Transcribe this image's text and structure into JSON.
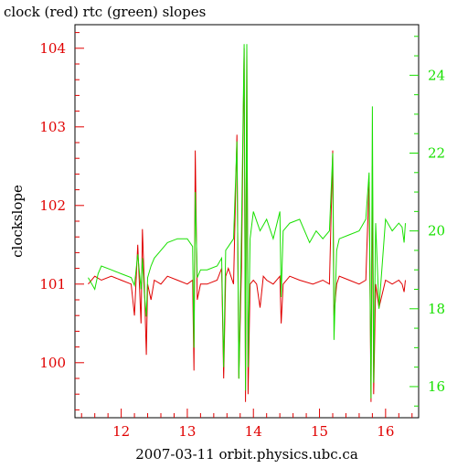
{
  "chart_data": {
    "type": "line",
    "title": "clock (red) rtc (green) slopes",
    "xlabel": "2007-03-11 orbit.physics.ubc.ca",
    "ylabel_left": "clockslope",
    "ylabel_right": "",
    "x_range": [
      11.3,
      16.5
    ],
    "y_left_range": [
      99.3,
      104.3
    ],
    "y_right_range": [
      15.2,
      25.3
    ],
    "x_ticks": [
      12,
      13,
      14,
      15,
      16
    ],
    "y_left_ticks": [
      100,
      101,
      102,
      103,
      104
    ],
    "y_right_ticks": [
      16,
      18,
      20,
      22,
      24
    ],
    "grid": false,
    "colors": {
      "clock": "#e00000",
      "rtc": "#18e000",
      "axis": "#000000"
    },
    "series": [
      {
        "name": "clock",
        "axis": "left",
        "color": "#e00000",
        "x": [
          11.5,
          11.6,
          11.7,
          11.85,
          12.0,
          12.15,
          12.2,
          12.25,
          12.3,
          12.32,
          12.35,
          12.38,
          12.4,
          12.45,
          12.5,
          12.6,
          12.7,
          12.85,
          13.0,
          13.08,
          13.1,
          13.12,
          13.15,
          13.2,
          13.3,
          13.45,
          13.52,
          13.55,
          13.58,
          13.62,
          13.7,
          13.75,
          13.78,
          13.82,
          13.86,
          13.88,
          13.9,
          13.92,
          13.95,
          14.0,
          14.05,
          14.1,
          14.15,
          14.2,
          14.3,
          14.4,
          14.42,
          14.45,
          14.55,
          14.7,
          14.9,
          15.05,
          15.15,
          15.2,
          15.22,
          15.26,
          15.3,
          15.45,
          15.6,
          15.7,
          15.75,
          15.78,
          15.8,
          15.82,
          15.85,
          15.9,
          16.0,
          16.1,
          16.2,
          16.25,
          16.28,
          16.3
        ],
        "y": [
          101.0,
          101.1,
          101.05,
          101.1,
          101.05,
          101.0,
          100.6,
          101.5,
          100.5,
          101.7,
          101.0,
          100.1,
          101.0,
          100.8,
          101.05,
          101.0,
          101.1,
          101.05,
          101.0,
          101.05,
          99.9,
          102.7,
          100.8,
          101.0,
          101.0,
          101.05,
          101.2,
          99.8,
          101.1,
          101.2,
          101.0,
          102.9,
          99.8,
          101.2,
          104.0,
          99.5,
          104.0,
          99.6,
          101.0,
          101.05,
          101.0,
          100.7,
          101.1,
          101.05,
          101.0,
          101.1,
          100.5,
          101.0,
          101.1,
          101.05,
          101.0,
          101.05,
          101.0,
          102.7,
          100.6,
          101.0,
          101.1,
          101.05,
          101.0,
          101.05,
          102.3,
          99.5,
          102.5,
          99.6,
          101.0,
          100.7,
          101.05,
          101.0,
          101.05,
          101.0,
          100.9,
          101.05
        ]
      },
      {
        "name": "rtc",
        "axis": "right",
        "color": "#18e000",
        "x": [
          11.5,
          11.6,
          11.65,
          11.7,
          11.85,
          12.0,
          12.15,
          12.2,
          12.25,
          12.3,
          12.32,
          12.35,
          12.38,
          12.4,
          12.45,
          12.5,
          12.6,
          12.7,
          12.85,
          13.0,
          13.08,
          13.1,
          13.12,
          13.15,
          13.2,
          13.3,
          13.45,
          13.52,
          13.55,
          13.58,
          13.62,
          13.7,
          13.75,
          13.78,
          13.82,
          13.86,
          13.88,
          13.9,
          13.92,
          13.95,
          14.0,
          14.1,
          14.2,
          14.3,
          14.4,
          14.42,
          14.45,
          14.55,
          14.7,
          14.85,
          14.95,
          15.05,
          15.15,
          15.2,
          15.22,
          15.26,
          15.3,
          15.45,
          15.6,
          15.7,
          15.75,
          15.78,
          15.8,
          15.82,
          15.85,
          15.9,
          16.0,
          16.1,
          16.2,
          16.25,
          16.28,
          16.3
        ],
        "y": [
          18.8,
          18.5,
          18.9,
          19.1,
          19.0,
          18.9,
          18.8,
          18.6,
          19.4,
          18.5,
          19.3,
          18.4,
          17.8,
          18.8,
          19.1,
          19.3,
          19.5,
          19.7,
          19.8,
          19.8,
          19.6,
          17.0,
          21.0,
          18.8,
          19.0,
          19.0,
          19.1,
          19.3,
          16.5,
          19.5,
          19.6,
          19.8,
          22.3,
          16.2,
          20.0,
          24.8,
          15.9,
          24.8,
          16.5,
          19.8,
          20.5,
          20.0,
          20.3,
          19.8,
          20.5,
          18.3,
          20.0,
          20.2,
          20.3,
          19.7,
          20.0,
          19.8,
          20.0,
          22.0,
          17.2,
          19.5,
          19.8,
          19.9,
          20.0,
          20.3,
          21.5,
          15.7,
          23.2,
          16.1,
          20.2,
          18.0,
          20.3,
          20.0,
          20.2,
          20.1,
          19.7,
          20.2
        ]
      }
    ]
  }
}
